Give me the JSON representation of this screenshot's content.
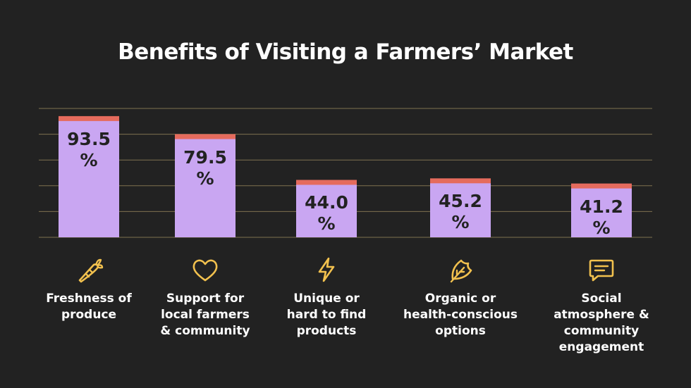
{
  "title": "Benefits of Visiting a Farmers’ Market",
  "colors": {
    "background": "#222222",
    "bar": "#c9a6f2",
    "bar_cap": "#e56b5d",
    "grid": "#8a7a55",
    "icon": "#f2c14e",
    "text": "#ffffff",
    "label_text": "#222222"
  },
  "chart_data": {
    "type": "bar",
    "title": "Benefits of Visiting a Farmers’ Market",
    "categories": [
      "Freshness of produce",
      "Support for local farmers & community",
      "Unique or hard to find products",
      "Organic or health-conscious options",
      "Social atmosphere & community engagement"
    ],
    "values": [
      93.5,
      79.5,
      44.0,
      45.2,
      41.2
    ],
    "value_labels": [
      "93.5\n%",
      "79.5\n%",
      "44.0\n%",
      "45.2\n%",
      "41.2\n%"
    ],
    "ylim": [
      0,
      100
    ],
    "grid": true,
    "xlabel": "",
    "ylabel": ""
  },
  "categories": [
    {
      "label_lines": [
        "Freshness of",
        "produce"
      ],
      "icon": "carrot-icon"
    },
    {
      "label_lines": [
        "Support for",
        "local farmers",
        "& community"
      ],
      "icon": "heart-icon"
    },
    {
      "label_lines": [
        "Unique or",
        "hard to find",
        "products"
      ],
      "icon": "lightning-icon"
    },
    {
      "label_lines": [
        "Organic or",
        "health-conscious",
        "options"
      ],
      "icon": "leaf-icon"
    },
    {
      "label_lines": [
        "Social",
        "atmosphere &",
        "community",
        "engagement"
      ],
      "icon": "chat-icon"
    }
  ]
}
